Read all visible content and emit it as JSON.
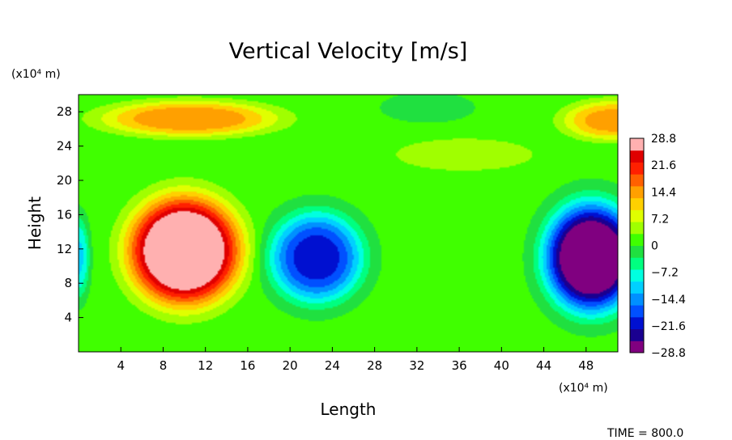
{
  "chart_data": {
    "type": "heatmap",
    "title": "Vertical Velocity [m/s]",
    "xlabel": "Length",
    "ylabel": "Height",
    "x_unit": "(x10⁴ m)",
    "y_unit": "(x10⁴ m)",
    "xlim": [
      0,
      51
    ],
    "ylim": [
      0,
      30
    ],
    "x_ticks": [
      4,
      8,
      12,
      16,
      20,
      24,
      28,
      32,
      36,
      40,
      44,
      48
    ],
    "y_ticks": [
      4,
      8,
      12,
      16,
      20,
      24,
      28
    ],
    "colorbar": {
      "range": [
        -28.8,
        28.8
      ],
      "ticks": [
        "28.8",
        "21.6",
        "14.4",
        "7.2",
        "0",
        "−7.2",
        "−14.4",
        "−21.6",
        "−28.8"
      ],
      "colors": [
        "#800080",
        "#1a0090",
        "#0010d0",
        "#0050ff",
        "#0090ff",
        "#00d0ff",
        "#00ffe0",
        "#00ff80",
        "#20e040",
        "#40ff00",
        "#a0ff00",
        "#e0ff00",
        "#ffd000",
        "#ffa000",
        "#ff6000",
        "#ff2000",
        "#e00000",
        "#ffb0b0"
      ]
    },
    "features": [
      {
        "x": 10.0,
        "y": 11.8,
        "rx": 5.0,
        "ry": 6.0,
        "peak": 28.8
      },
      {
        "x": 22.5,
        "y": 11.0,
        "rx": 4.2,
        "ry": 5.0,
        "peak": -18.0
      },
      {
        "x": 48.5,
        "y": 11.0,
        "rx": 4.2,
        "ry": 6.0,
        "peak": -28.8
      },
      {
        "x": 0.0,
        "y": 11.0,
        "rx": 1.0,
        "ry": 4.5,
        "peak": -9.0
      },
      {
        "x": 10.5,
        "y": 27.2,
        "rx": 8.0,
        "ry": 2.0,
        "peak": 12.0
      },
      {
        "x": 50.5,
        "y": 27.0,
        "rx": 4.5,
        "ry": 2.2,
        "peak": 11.0
      },
      {
        "x": 36.5,
        "y": 23.0,
        "rx": 7.0,
        "ry": 2.0,
        "peak": 3.5
      },
      {
        "x": 33.0,
        "y": 28.5,
        "rx": 5.0,
        "ry": 2.0,
        "peak": -1.5
      }
    ],
    "background": 1.0,
    "time_label": "TIME = 800.0"
  }
}
